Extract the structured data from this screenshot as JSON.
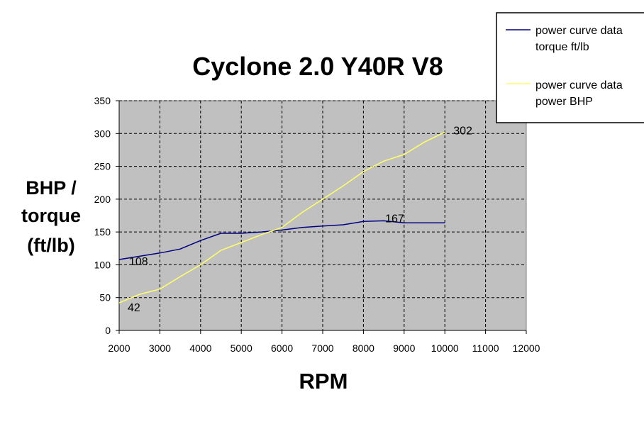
{
  "chart_data": {
    "type": "line",
    "title": "Cyclone 2.0 Y40R V8",
    "ylabel_lines": [
      "BHP /",
      "torque",
      "(ft/lb)"
    ],
    "xlabel": "RPM",
    "xlim": [
      2000,
      12000
    ],
    "ylim": [
      0,
      350
    ],
    "xticks": [
      2000,
      3000,
      4000,
      5000,
      6000,
      7000,
      8000,
      9000,
      10000,
      11000,
      12000
    ],
    "yticks": [
      0,
      50,
      100,
      150,
      200,
      250,
      300,
      350
    ],
    "grid": true,
    "plot_background": "#c0c0c0",
    "legend_position": "top-right",
    "series": [
      {
        "name_lines": [
          "power curve data",
          "torque ft/lb"
        ],
        "color": "#000080",
        "x": [
          2000,
          2500,
          3000,
          3500,
          4000,
          4500,
          5000,
          5500,
          6000,
          6500,
          7000,
          7500,
          8000,
          8500,
          9000,
          9500,
          10000
        ],
        "values": [
          108,
          113,
          118,
          124,
          137,
          148,
          148,
          150,
          153,
          157,
          159,
          161,
          166,
          167,
          164,
          164,
          164
        ]
      },
      {
        "name_lines": [
          "power curve data",
          "power BHP"
        ],
        "color": "#ffff66",
        "x": [
          2000,
          2500,
          3000,
          3500,
          4000,
          4500,
          5000,
          5500,
          6000,
          6500,
          7000,
          7500,
          8000,
          8500,
          9000,
          9500,
          10000
        ],
        "values": [
          42,
          55,
          63,
          82,
          100,
          122,
          134,
          146,
          157,
          180,
          200,
          220,
          242,
          258,
          268,
          287,
          302
        ]
      }
    ],
    "data_labels": [
      {
        "series": 0,
        "x": 2000,
        "y": 108,
        "text": "108"
      },
      {
        "series": 0,
        "x": 8500,
        "y": 167,
        "text": "167"
      },
      {
        "series": 1,
        "x": 2000,
        "y": 42,
        "text": "42"
      },
      {
        "series": 1,
        "x": 10000,
        "y": 302,
        "text": "302"
      }
    ]
  }
}
